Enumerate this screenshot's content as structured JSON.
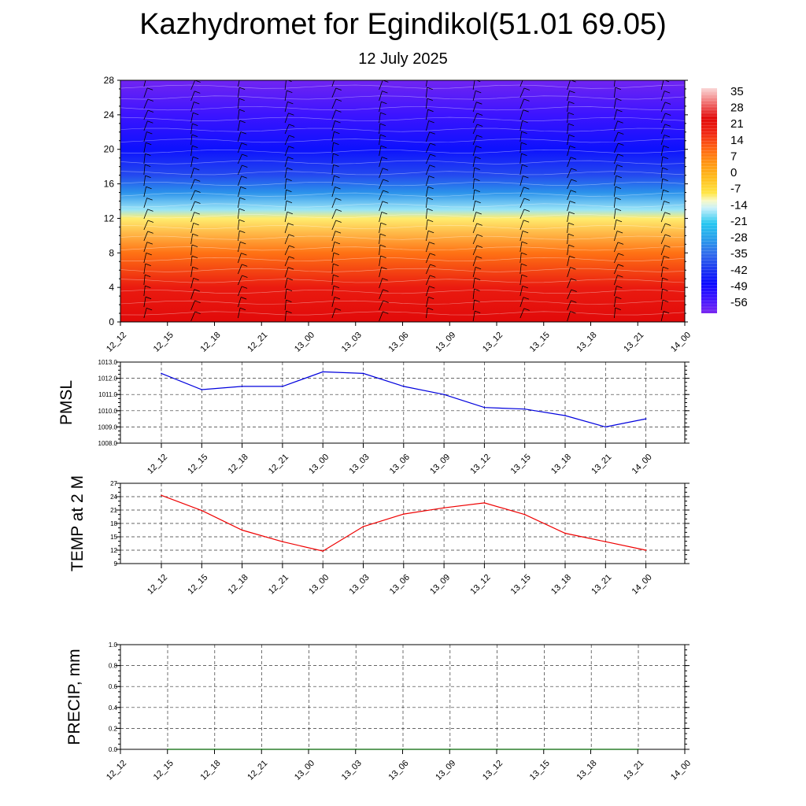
{
  "page": {
    "title": "Kazhydromet for Egindikol(51.01 69.05)",
    "date": "12 July 2025"
  },
  "chart_data": [
    {
      "type": "heatmap",
      "name": "vertical-cross-section",
      "x_ticks": [
        "12_12",
        "12_15",
        "12_18",
        "12_21",
        "13_00",
        "13_03",
        "13_06",
        "13_09",
        "13_12",
        "13_15",
        "13_18",
        "13_21",
        "14_00"
      ],
      "y_ticks": [
        0,
        4,
        8,
        12,
        16,
        20,
        24,
        28
      ],
      "ylim": [
        0,
        28
      ],
      "colorbar": {
        "labels": [
          35,
          28,
          21,
          14,
          7,
          0,
          -7,
          -14,
          -21,
          -28,
          -35,
          -42,
          -49,
          -56
        ],
        "range": [
          -63,
          42
        ]
      },
      "temperature_profile": [
        {
          "height": 0,
          "temp": 28
        },
        {
          "height": 4,
          "temp": 24
        },
        {
          "height": 8,
          "temp": 12
        },
        {
          "height": 12,
          "temp": -8
        },
        {
          "height": 13,
          "temp": -16
        },
        {
          "height": 15,
          "temp": -30
        },
        {
          "height": 17,
          "temp": -40
        },
        {
          "height": 20,
          "temp": -48
        },
        {
          "height": 24,
          "temp": -56
        },
        {
          "height": 28,
          "temp": -62
        }
      ],
      "has_wind_barbs": true
    },
    {
      "type": "line",
      "name": "pmsl",
      "ylabel": "PMSL",
      "categories": [
        "12_12",
        "12_15",
        "12_18",
        "12_21",
        "13_00",
        "13_03",
        "13_06",
        "13_09",
        "13_12",
        "13_15",
        "13_18",
        "13_21",
        "14_00"
      ],
      "values": [
        1012.3,
        1011.3,
        1011.5,
        1011.5,
        1012.4,
        1012.3,
        1011.5,
        1011.0,
        1010.2,
        1010.1,
        1009.7,
        1009.0,
        1009.5
      ],
      "ylim": [
        1008.0,
        1013.0
      ],
      "y_ticks": [
        "1013.0",
        "1012.0",
        "1011.0",
        "1010.0",
        "1009.0",
        "1008.0"
      ],
      "color": "#0000dd",
      "grid": true
    },
    {
      "type": "line",
      "name": "temp-2m",
      "ylabel": "TEMP at 2 M",
      "categories": [
        "12_12",
        "12_15",
        "12_18",
        "12_21",
        "13_00",
        "13_03",
        "13_06",
        "13_09",
        "13_12",
        "13_15",
        "13_18",
        "13_21",
        "14_00"
      ],
      "values": [
        24.3,
        20.9,
        16.5,
        13.9,
        11.8,
        17.3,
        20.1,
        21.5,
        22.6,
        20.0,
        15.8,
        13.9,
        12.0
      ],
      "ylim": [
        9,
        27
      ],
      "y_ticks": [
        27,
        24,
        21,
        18,
        15,
        12,
        9
      ],
      "color": "#ee0000",
      "grid": true
    },
    {
      "type": "line",
      "name": "precip",
      "ylabel": "PRECIP, mm",
      "x_ticks": [
        "12_12",
        "12_15",
        "12_18",
        "12_21",
        "13_00",
        "13_03",
        "13_06",
        "13_09",
        "13_12",
        "13_15",
        "13_18",
        "13_21",
        "14_00"
      ],
      "categories": [
        "12_15",
        "12_18",
        "12_21",
        "13_00",
        "13_03",
        "13_06",
        "13_09",
        "13_12",
        "13_15",
        "13_18",
        "13_21"
      ],
      "values": [
        0,
        0,
        0,
        0,
        0,
        0,
        0,
        0,
        0,
        0,
        0
      ],
      "ylim": [
        0.0,
        1.0
      ],
      "y_ticks": [
        "1.0",
        "0.8",
        "0.6",
        "0.4",
        "0.2",
        "0.0"
      ],
      "color": "#006400",
      "grid": true
    }
  ]
}
